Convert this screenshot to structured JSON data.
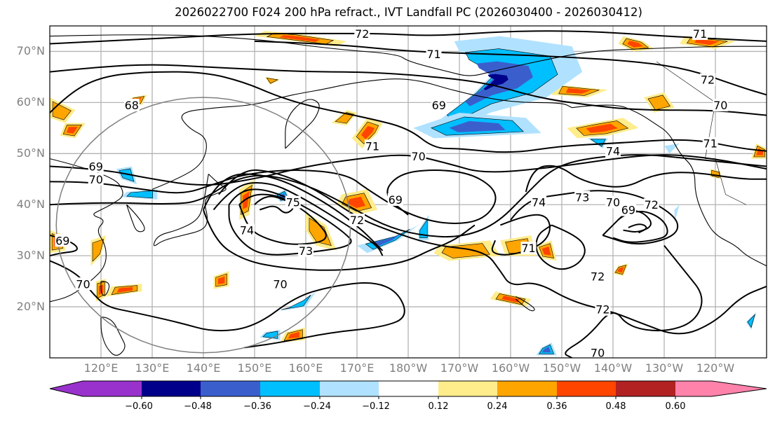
{
  "title": "2026022700 F024 200 hPa refract., IVT Landfall PC (2026030400 - 2026030412)",
  "map": {
    "projection": "PlateCarree",
    "extent_lon": [
      110,
      250
    ],
    "extent_lat": [
      10,
      75
    ],
    "lat_ticks": [
      "70°N",
      "60°N",
      "50°N",
      "40°N",
      "30°N",
      "20°N"
    ],
    "lat_values": [
      70,
      60,
      50,
      40,
      30,
      20
    ],
    "lon_ticks": [
      "120°E",
      "130°E",
      "140°E",
      "150°E",
      "160°E",
      "170°E",
      "180°W",
      "170°W",
      "160°W",
      "150°W",
      "140°W",
      "130°W",
      "120°W"
    ],
    "lon_values": [
      120,
      130,
      140,
      150,
      160,
      170,
      180,
      190,
      200,
      210,
      220,
      230,
      240
    ],
    "grid": true,
    "circle_center": [
      140,
      36
    ],
    "circle_radius_deg": 25
  },
  "chart_data": {
    "type": "heatmap",
    "title": "2026022700 F024 200 hPa refract., IVT Landfall PC (2026030400 - 2026030412)",
    "contour_field": "200 hPa refractivity",
    "contour_labels": [
      {
        "label": "72",
        "lon": 171,
        "lat": 73.5
      },
      {
        "label": "71",
        "lon": 185,
        "lat": 69.5
      },
      {
        "label": "71",
        "lon": 237,
        "lat": 73.5
      },
      {
        "label": "72",
        "lon": 238.5,
        "lat": 64.5
      },
      {
        "label": "68",
        "lon": 126,
        "lat": 59.5
      },
      {
        "label": "69",
        "lon": 186,
        "lat": 59.5
      },
      {
        "label": "70",
        "lon": 241,
        "lat": 59.5
      },
      {
        "label": "71",
        "lon": 173,
        "lat": 51.5
      },
      {
        "label": "71",
        "lon": 239,
        "lat": 52
      },
      {
        "label": "74",
        "lon": 220,
        "lat": 50.5
      },
      {
        "label": "70",
        "lon": 182,
        "lat": 49.5
      },
      {
        "label": "69",
        "lon": 119,
        "lat": 47.5
      },
      {
        "label": "70",
        "lon": 119,
        "lat": 45
      },
      {
        "label": "75",
        "lon": 157.5,
        "lat": 40.5
      },
      {
        "label": "69",
        "lon": 177.5,
        "lat": 41
      },
      {
        "label": "74",
        "lon": 205.5,
        "lat": 40.5
      },
      {
        "label": "73",
        "lon": 214,
        "lat": 41.5
      },
      {
        "label": "70",
        "lon": 220,
        "lat": 40.5
      },
      {
        "label": "69",
        "lon": 223,
        "lat": 39
      },
      {
        "label": "72",
        "lon": 227.5,
        "lat": 40
      },
      {
        "label": "74",
        "lon": 148.5,
        "lat": 35
      },
      {
        "label": "72",
        "lon": 170,
        "lat": 37
      },
      {
        "label": "73",
        "lon": 160,
        "lat": 31
      },
      {
        "label": "71",
        "lon": 203.5,
        "lat": 31.5
      },
      {
        "label": "69",
        "lon": 112.5,
        "lat": 33
      },
      {
        "label": "72",
        "lon": 217,
        "lat": 26
      },
      {
        "label": "70",
        "lon": 116.5,
        "lat": 24.5
      },
      {
        "label": "70",
        "lon": 155,
        "lat": 24.5
      },
      {
        "label": "72",
        "lon": 218,
        "lat": 19.5
      },
      {
        "label": "70",
        "lon": 217,
        "lat": 11
      }
    ],
    "shading_field": "IVT Landfall PC",
    "colorbar": {
      "levels": [
        -0.6,
        -0.48,
        -0.36,
        -0.24,
        -0.12,
        0.12,
        0.24,
        0.36,
        0.48,
        0.6
      ],
      "tick_labels": [
        "−0.60",
        "−0.48",
        "−0.36",
        "−0.24",
        "−0.12",
        "0.12",
        "0.24",
        "0.36",
        "0.48",
        "0.60"
      ],
      "colors": [
        "#9932CC",
        "#00008B",
        "#3A5FCD",
        "#00BFFF",
        "#B0E2FF",
        "#FFFFFF",
        "#FFEC8B",
        "#FFA500",
        "#FF4500",
        "#B22222",
        "#FF82AB"
      ],
      "extend": "both"
    }
  }
}
